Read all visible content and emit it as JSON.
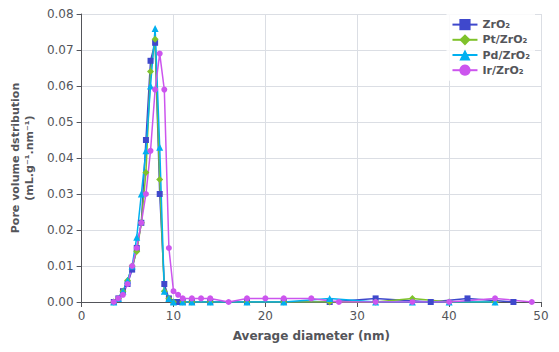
{
  "chart_data": {
    "type": "line",
    "xlabel": "Average diameter (nm)",
    "ylabel": "Pore volume dstribution\n(mL.g⁻¹.nm⁻¹)",
    "xlim": [
      0,
      50
    ],
    "ylim": [
      0,
      0.08
    ],
    "xticks": [
      0,
      10,
      20,
      30,
      40,
      50
    ],
    "yticks": [
      {
        "value": 0,
        "label": "0.00"
      },
      0.01,
      0.02,
      0.03,
      0.04,
      0.05,
      0.06,
      0.07,
      0.08
    ],
    "grid": true,
    "legend": "upper right",
    "series": [
      {
        "name": "ZrO₂",
        "color": "#3f48cc",
        "marker": "square",
        "x": [
          3.5,
          4.0,
          4.5,
          5.0,
          5.5,
          6.0,
          6.5,
          7.0,
          7.5,
          8.0,
          8.5,
          9.0,
          9.5,
          10.0,
          10.5,
          11.0,
          12.0,
          14.0,
          18.0,
          22.0,
          27.0,
          32.0,
          38.0,
          42.0,
          47.0
        ],
        "values": [
          0.0,
          0.001,
          0.003,
          0.005,
          0.009,
          0.015,
          0.022,
          0.045,
          0.067,
          0.072,
          0.03,
          0.005,
          0.001,
          0.0,
          0.0,
          0.0,
          0.0,
          0.0,
          0.0,
          0.0,
          0.0,
          0.001,
          0.0,
          0.001,
          0.0
        ]
      },
      {
        "name": "Pt/ZrO₂",
        "color": "#7fc22b",
        "marker": "diamond",
        "x": [
          3.5,
          4.0,
          4.5,
          5.0,
          5.5,
          6.0,
          6.5,
          7.0,
          7.5,
          8.0,
          8.5,
          9.0,
          9.5,
          10.0,
          11.0,
          12.0,
          14.0,
          18.0,
          22.0,
          27.0,
          32.0,
          36.0,
          40.0,
          45.0
        ],
        "values": [
          0.0,
          0.001,
          0.003,
          0.006,
          0.01,
          0.014,
          0.022,
          0.036,
          0.064,
          0.073,
          0.034,
          0.003,
          0.001,
          0.0,
          0.0,
          0.0,
          0.0,
          0.0,
          0.0,
          0.0,
          0.0,
          0.001,
          0.0,
          0.0
        ]
      },
      {
        "name": "Pd/ZrO₂",
        "color": "#00b0f0",
        "marker": "triangle",
        "x": [
          3.5,
          4.0,
          4.5,
          5.0,
          5.5,
          6.0,
          6.5,
          7.0,
          7.5,
          8.0,
          8.5,
          9.0,
          9.5,
          10.0,
          11.0,
          12.0,
          14.0,
          18.0,
          22.0,
          27.0,
          32.0,
          36.0,
          40.0,
          45.0
        ],
        "values": [
          0.0,
          0.001,
          0.003,
          0.006,
          0.01,
          0.018,
          0.03,
          0.042,
          0.06,
          0.076,
          0.043,
          0.003,
          0.001,
          0.0,
          0.0,
          0.0,
          0.0,
          0.0,
          0.0,
          0.001,
          0.0,
          0.0,
          0.0,
          0.0
        ]
      },
      {
        "name": "Ir/ZrO₂",
        "color": "#cc55ee",
        "marker": "circle",
        "x": [
          3.5,
          4.0,
          4.5,
          5.0,
          5.5,
          6.0,
          6.5,
          7.0,
          7.5,
          8.0,
          8.5,
          9.0,
          9.5,
          10.0,
          10.5,
          11.0,
          12.0,
          13.0,
          14.0,
          16.0,
          18.0,
          20.0,
          22.0,
          25.0,
          28.0,
          32.0,
          36.0,
          40.0,
          45.0,
          49.0
        ],
        "values": [
          0.0,
          0.001,
          0.002,
          0.005,
          0.01,
          0.015,
          0.022,
          0.03,
          0.042,
          0.059,
          0.069,
          0.059,
          0.015,
          0.003,
          0.002,
          0.001,
          0.001,
          0.001,
          0.001,
          0.0,
          0.001,
          0.001,
          0.001,
          0.001,
          0.0,
          0.0,
          0.0,
          0.0,
          0.001,
          0.0
        ]
      }
    ]
  }
}
